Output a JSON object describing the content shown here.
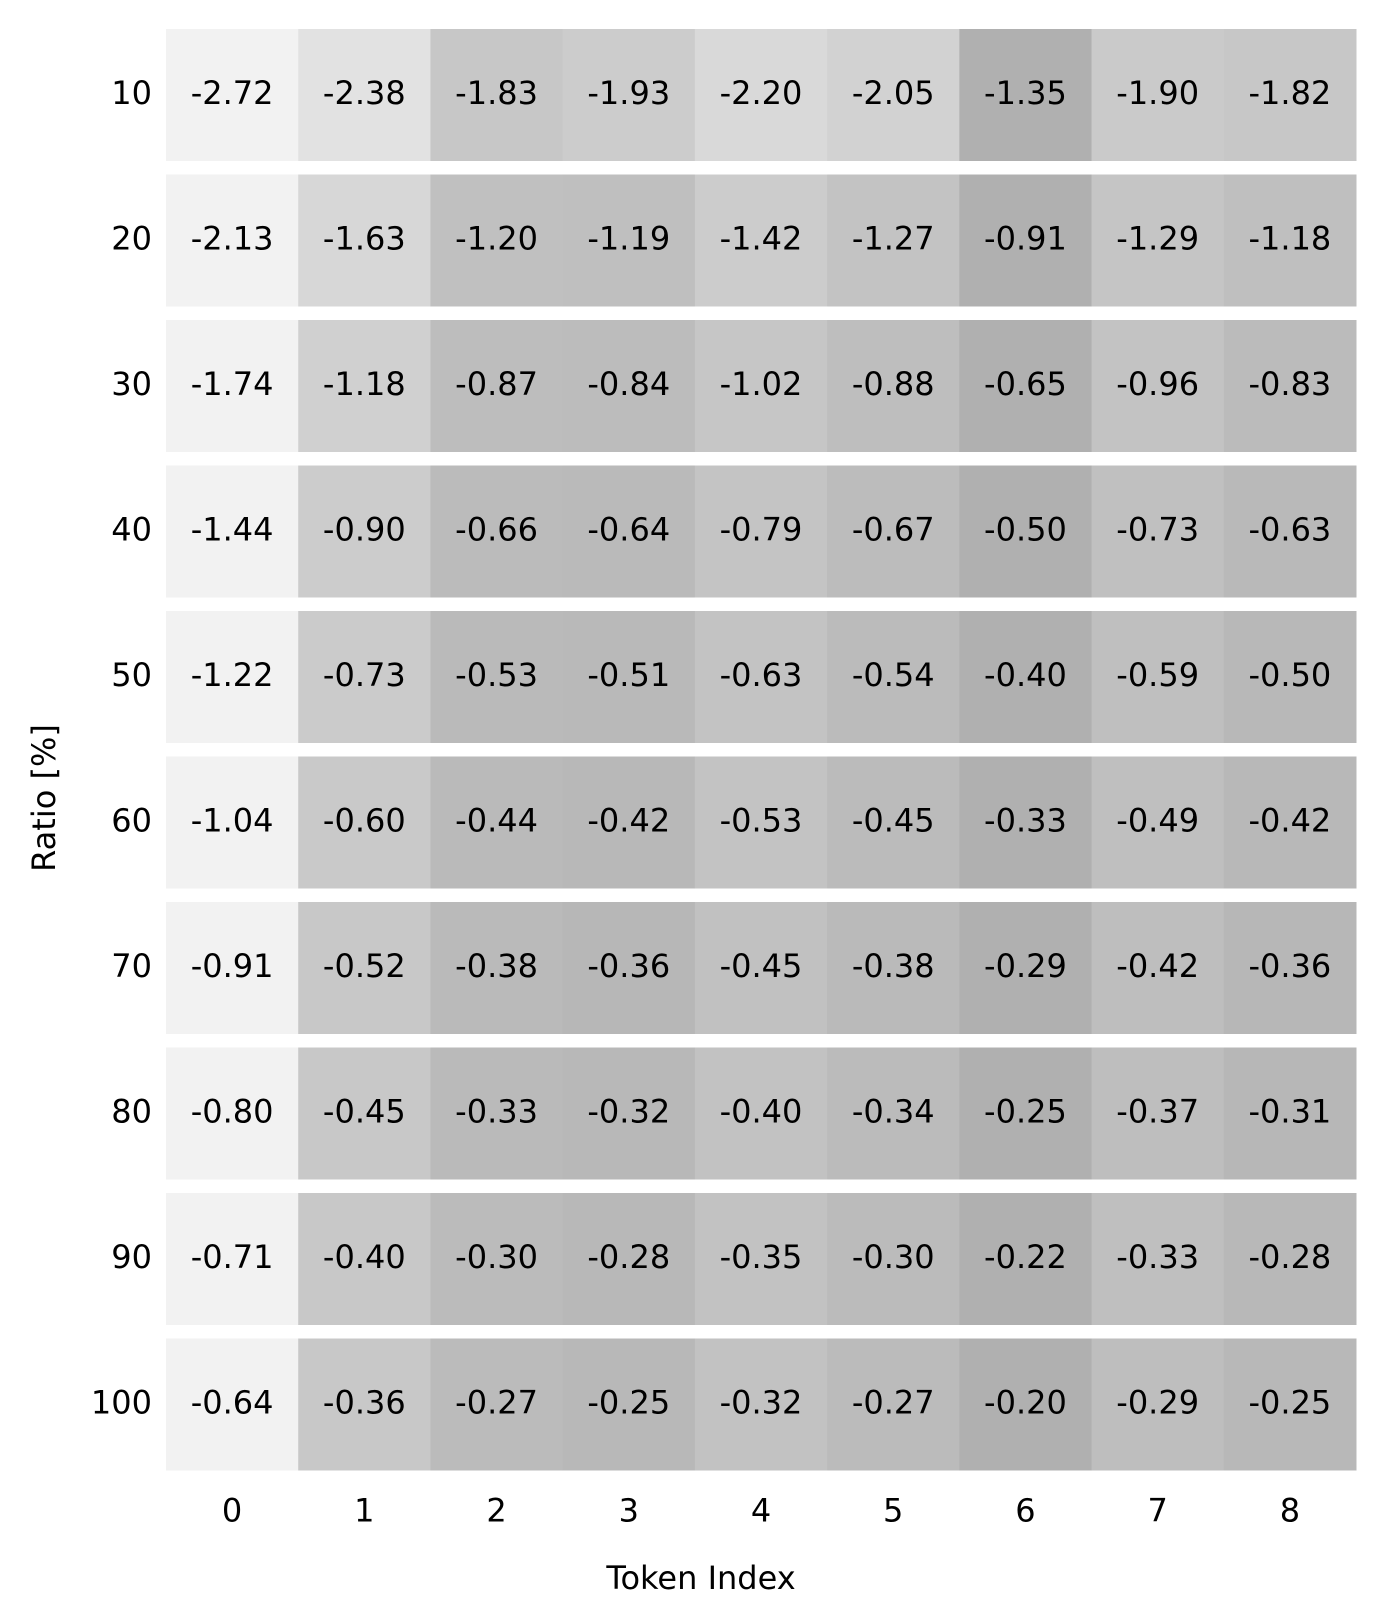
{
  "chart_data": {
    "type": "heatmap",
    "x_label": "Token Index",
    "y_label": "Ratio [%]",
    "categories": [
      "0",
      "1",
      "2",
      "3",
      "4",
      "5",
      "6",
      "7",
      "8"
    ],
    "rows": [
      "10",
      "20",
      "30",
      "40",
      "50",
      "60",
      "70",
      "80",
      "90",
      "100"
    ],
    "values": [
      [
        -2.72,
        -2.38,
        -1.83,
        -1.93,
        -2.2,
        -2.05,
        -1.35,
        -1.9,
        -1.82
      ],
      [
        -2.13,
        -1.63,
        -1.2,
        -1.19,
        -1.42,
        -1.27,
        -0.91,
        -1.29,
        -1.18
      ],
      [
        -1.74,
        -1.18,
        -0.87,
        -0.84,
        -1.02,
        -0.88,
        -0.65,
        -0.96,
        -0.83
      ],
      [
        -1.44,
        -0.9,
        -0.66,
        -0.64,
        -0.79,
        -0.67,
        -0.5,
        -0.73,
        -0.63
      ],
      [
        -1.22,
        -0.73,
        -0.53,
        -0.51,
        -0.63,
        -0.54,
        -0.4,
        -0.59,
        -0.5
      ],
      [
        -1.04,
        -0.6,
        -0.44,
        -0.42,
        -0.53,
        -0.45,
        -0.33,
        -0.49,
        -0.42
      ],
      [
        -0.91,
        -0.52,
        -0.38,
        -0.36,
        -0.45,
        -0.38,
        -0.29,
        -0.42,
        -0.36
      ],
      [
        -0.8,
        -0.45,
        -0.33,
        -0.32,
        -0.4,
        -0.34,
        -0.25,
        -0.37,
        -0.31
      ],
      [
        -0.71,
        -0.4,
        -0.3,
        -0.28,
        -0.35,
        -0.3,
        -0.22,
        -0.33,
        -0.28
      ],
      [
        -0.64,
        -0.36,
        -0.27,
        -0.25,
        -0.32,
        -0.27,
        -0.2,
        -0.29,
        -0.25
      ]
    ],
    "value_labels": [
      [
        "-2.72",
        "-2.38",
        "-1.83",
        "-1.93",
        "-2.20",
        "-2.05",
        "-1.35",
        "-1.90",
        "-1.82"
      ],
      [
        "-2.13",
        "-1.63",
        "-1.20",
        "-1.19",
        "-1.42",
        "-1.27",
        "-0.91",
        "-1.29",
        "-1.18"
      ],
      [
        "-1.74",
        "-1.18",
        "-0.87",
        "-0.84",
        "-1.02",
        "-0.88",
        "-0.65",
        "-0.96",
        "-0.83"
      ],
      [
        "-1.44",
        "-0.90",
        "-0.66",
        "-0.64",
        "-0.79",
        "-0.67",
        "-0.50",
        "-0.73",
        "-0.63"
      ],
      [
        "-1.22",
        "-0.73",
        "-0.53",
        "-0.51",
        "-0.63",
        "-0.54",
        "-0.40",
        "-0.59",
        "-0.50"
      ],
      [
        "-1.04",
        "-0.60",
        "-0.44",
        "-0.42",
        "-0.53",
        "-0.45",
        "-0.33",
        "-0.49",
        "-0.42"
      ],
      [
        "-0.91",
        "-0.52",
        "-0.38",
        "-0.36",
        "-0.45",
        "-0.38",
        "-0.29",
        "-0.42",
        "-0.36"
      ],
      [
        "-0.80",
        "-0.45",
        "-0.33",
        "-0.32",
        "-0.40",
        "-0.34",
        "-0.25",
        "-0.37",
        "-0.31"
      ],
      [
        "-0.71",
        "-0.40",
        "-0.30",
        "-0.28",
        "-0.35",
        "-0.30",
        "-0.22",
        "-0.33",
        "-0.28"
      ],
      [
        "-0.64",
        "-0.36",
        "-0.27",
        "-0.25",
        "-0.32",
        "-0.27",
        "-0.20",
        "-0.29",
        "-0.25"
      ]
    ],
    "colormap": [
      "#f2f2f2",
      "#b0b0b0"
    ]
  }
}
